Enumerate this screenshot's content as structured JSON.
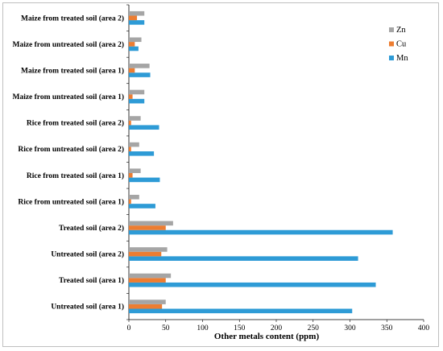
{
  "chart_data": {
    "type": "bar",
    "orientation": "horizontal",
    "categories": [
      "Untreated soil (area 1)",
      "Treated soil (area 1)",
      "Untreated soil (area 2)",
      "Treated soil (area 2)",
      "Rice from untreated soil (area 1)",
      "Rice from treated soil (area 1)",
      "Rice from untreated soil (area 2)",
      "Rice from treated soil (area 2)",
      "Maize from untreated soil (area 1)",
      "Maize from treated soil (area 1)",
      "Maize from untreated soil (area 2)",
      "Maize from treated soil (area 2)"
    ],
    "series": [
      {
        "name": "Mn",
        "color": "#2e9bd6",
        "values": [
          303,
          335,
          311,
          358,
          36,
          42,
          34,
          41,
          21,
          29,
          13,
          21
        ]
      },
      {
        "name": "Cu",
        "color": "#ed7d31",
        "values": [
          45,
          50,
          44,
          50,
          3,
          5,
          3,
          3,
          5,
          8,
          8,
          11
        ]
      },
      {
        "name": "Zn",
        "color": "#a5a5a5",
        "values": [
          50,
          57,
          52,
          60,
          14,
          16,
          14,
          16,
          21,
          28,
          17,
          21
        ]
      }
    ],
    "xlabel": "Other metals content (ppm)",
    "ylabel": "",
    "xlim": [
      0,
      400
    ],
    "xticks": [
      0,
      50,
      100,
      150,
      200,
      250,
      300,
      350,
      400
    ],
    "legend": {
      "position": "right",
      "order": [
        "Zn",
        "Cu",
        "Mn"
      ]
    },
    "grid": false
  }
}
